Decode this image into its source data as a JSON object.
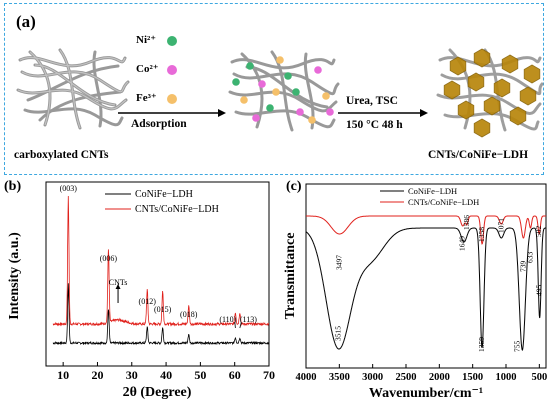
{
  "panel_a": {
    "label": "(a)",
    "start_label": "carboxylated CNTs",
    "ions": [
      {
        "text": "Ni²⁺",
        "color": "#3cb371"
      },
      {
        "text": "Co²⁺",
        "color": "#e86ad8"
      },
      {
        "text": "Fe³⁺",
        "color": "#f5c06a"
      }
    ],
    "step1_label": "Adsorption",
    "step2_top": "Urea, TSC",
    "step2_bottom": "150 °C 48 h",
    "product_label": "CNTs/CoNiFe−LDH",
    "ldh_color": "#b8860b"
  },
  "panel_b": {
    "label": "(b)",
    "chart_data": {
      "type": "line",
      "title": "",
      "xlabel": "2θ (Degree)",
      "ylabel": "Intensity (a.u.)",
      "xlim": [
        5,
        70
      ],
      "x_ticks": [
        10,
        20,
        30,
        40,
        50,
        60,
        70
      ],
      "series": [
        {
          "name": "CoNiFe−LDH",
          "color": "#000000",
          "peaks": [
            11.5,
            23.2,
            34.5,
            39.0,
            46.6,
            60.2,
            61.5
          ]
        },
        {
          "name": "CNTs/CoNiFe−LDH",
          "color": "#e0201b",
          "peaks": [
            11.5,
            23.2,
            26.0,
            34.5,
            39.0,
            46.6,
            60.2,
            61.5
          ]
        }
      ],
      "annotations": [
        {
          "text": "(003)",
          "x": 11.5
        },
        {
          "text": "(006)",
          "x": 23.2
        },
        {
          "text": "CNTs",
          "x": 26.0
        },
        {
          "text": "(012)",
          "x": 34.5
        },
        {
          "text": "(015)",
          "x": 39.0
        },
        {
          "text": "(018)",
          "x": 46.6
        },
        {
          "text": "(110)",
          "x": 58.0
        },
        {
          "text": "(113)",
          "x": 64.0
        }
      ],
      "legend_position": "top-right"
    }
  },
  "panel_c": {
    "label": "(c)",
    "chart_data": {
      "type": "line",
      "title": "",
      "xlabel": "Wavenumber/cm⁻¹",
      "ylabel": "Transmittance",
      "xlim": [
        4000,
        400
      ],
      "x_ticks": [
        4000,
        3500,
        3000,
        2500,
        2000,
        1500,
        1000,
        500
      ],
      "series": [
        {
          "name": "CoNiFe−LDH",
          "color": "#000000",
          "bands": [
            3515,
            1359,
            755,
            495
          ]
        },
        {
          "name": "CNTs/CoNiFe−LDH",
          "color": "#e0201b",
          "bands": [
            3497,
            1649,
            1586,
            1358,
            1071,
            739,
            633,
            502
          ]
        }
      ],
      "annotations": [
        {
          "text": "3515",
          "x": 3515
        },
        {
          "text": "1359",
          "x": 1359
        },
        {
          "text": "755",
          "x": 755
        },
        {
          "text": "495",
          "x": 495
        },
        {
          "text": "3497",
          "x": 3497
        },
        {
          "text": "1649",
          "x": 1649
        },
        {
          "text": "1586",
          "x": 1586
        },
        {
          "text": "1358",
          "x": 1358
        },
        {
          "text": "1071",
          "x": 1071
        },
        {
          "text": "739",
          "x": 739
        },
        {
          "text": "633",
          "x": 633
        },
        {
          "text": "502",
          "x": 502
        }
      ],
      "legend_position": "top-center"
    }
  }
}
